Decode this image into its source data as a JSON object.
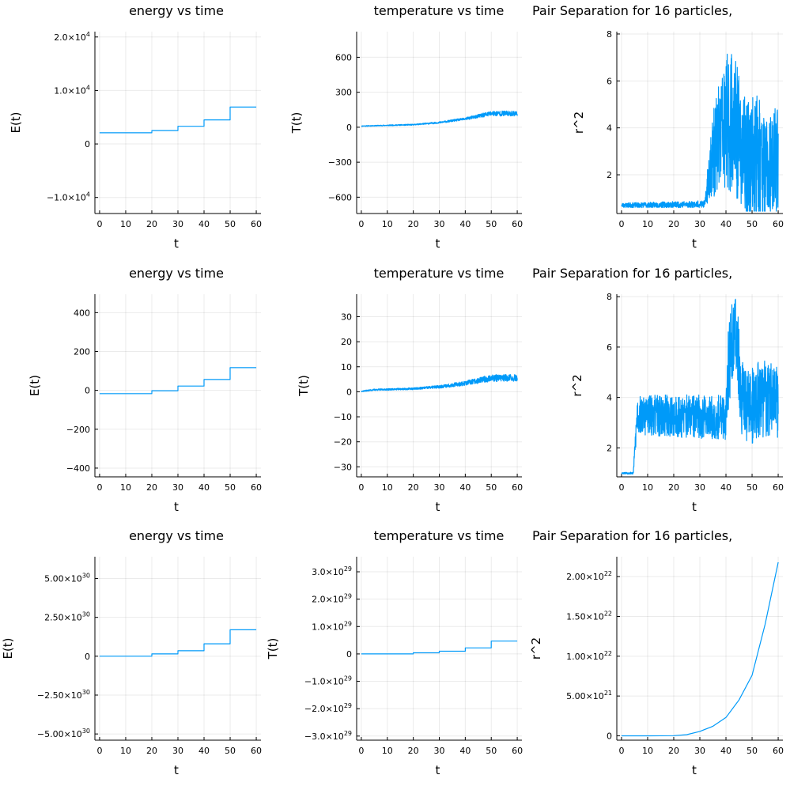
{
  "figure": {
    "background": "#ffffff",
    "line_color": "#009af9"
  },
  "chart_data": [
    {
      "id": "r1c1",
      "type": "line",
      "title": "energy vs time",
      "xlabel": "t",
      "ylabel": "E(t)",
      "xlim": [
        -1.8,
        61.8
      ],
      "ylim": [
        -13000,
        21000
      ],
      "xticks": [
        0,
        10,
        20,
        30,
        40,
        50,
        60
      ],
      "xticklabels": [
        "0",
        "10",
        "20",
        "30",
        "40",
        "50",
        "60"
      ],
      "yticks": [
        -10000,
        0,
        10000,
        20000
      ],
      "yticklabels": [
        {
          "m": "−1.0×10",
          "e": "4"
        },
        {
          "m": "0",
          "e": ""
        },
        {
          "m": "1.0×10",
          "e": "4"
        },
        {
          "m": "2.0×10",
          "e": "4"
        }
      ],
      "step": true,
      "x": [
        0,
        20,
        30,
        40,
        50,
        60
      ],
      "y": [
        2100,
        2500,
        3300,
        4500,
        6900,
        6900
      ]
    },
    {
      "id": "r1c2",
      "type": "line",
      "title": "temperature vs time",
      "xlabel": "t",
      "ylabel": "T(t)",
      "xlim": [
        -1.8,
        61.8
      ],
      "ylim": [
        -740,
        820
      ],
      "xticks": [
        0,
        10,
        20,
        30,
        40,
        50,
        60
      ],
      "xticklabels": [
        "0",
        "10",
        "20",
        "30",
        "40",
        "50",
        "60"
      ],
      "yticks": [
        -600,
        -300,
        0,
        300,
        600
      ],
      "yticklabels": [
        {
          "m": "−600",
          "e": ""
        },
        {
          "m": "−300",
          "e": ""
        },
        {
          "m": "0",
          "e": ""
        },
        {
          "m": "300",
          "e": ""
        },
        {
          "m": "600",
          "e": ""
        }
      ],
      "noisy": true,
      "seed": 11,
      "n": 900,
      "x": [
        0,
        20,
        30,
        40,
        50,
        60
      ],
      "y": [
        10,
        22,
        40,
        72,
        118,
        118
      ],
      "noise_amp": [
        3,
        5,
        7,
        10,
        22,
        22
      ]
    },
    {
      "id": "r1c3",
      "type": "line",
      "title": "Pair Separation for 16 particles,",
      "xlabel": "t",
      "ylabel": "r^2",
      "xlim": [
        -1.8,
        61.8
      ],
      "ylim": [
        0.35,
        8.1
      ],
      "xticks": [
        0,
        10,
        20,
        30,
        40,
        50,
        60
      ],
      "xticklabels": [
        "0",
        "10",
        "20",
        "30",
        "40",
        "50",
        "60"
      ],
      "yticks": [
        2,
        4,
        6,
        8
      ],
      "yticklabels": [
        {
          "m": "2",
          "e": ""
        },
        {
          "m": "4",
          "e": ""
        },
        {
          "m": "6",
          "e": ""
        },
        {
          "m": "8",
          "e": ""
        }
      ],
      "noisy": true,
      "seed": 23,
      "n": 900,
      "x": [
        0,
        32,
        34,
        38,
        42,
        46,
        48,
        52,
        56,
        60
      ],
      "y": [
        0.7,
        0.75,
        2.5,
        3.8,
        4.5,
        3.2,
        2.5,
        3.0,
        2.0,
        2.8
      ],
      "noise_amp": [
        0.1,
        0.15,
        1.5,
        2.6,
        3.2,
        2.6,
        2.5,
        2.7,
        2.3,
        2.4
      ],
      "clip": [
        0.45,
        7.85
      ]
    },
    {
      "id": "r2c1",
      "type": "line",
      "title": "energy vs time",
      "xlabel": "t",
      "ylabel": "E(t)",
      "xlim": [
        -1.8,
        61.8
      ],
      "ylim": [
        -445,
        495
      ],
      "xticks": [
        0,
        10,
        20,
        30,
        40,
        50,
        60
      ],
      "xticklabels": [
        "0",
        "10",
        "20",
        "30",
        "40",
        "50",
        "60"
      ],
      "yticks": [
        -400,
        -200,
        0,
        200,
        400
      ],
      "yticklabels": [
        {
          "m": "−400",
          "e": ""
        },
        {
          "m": "−200",
          "e": ""
        },
        {
          "m": "0",
          "e": ""
        },
        {
          "m": "200",
          "e": ""
        },
        {
          "m": "400",
          "e": ""
        }
      ],
      "step": true,
      "x": [
        0,
        20,
        30,
        40,
        50,
        60
      ],
      "y": [
        -17,
        -2,
        22,
        56,
        117,
        117
      ]
    },
    {
      "id": "r2c2",
      "type": "line",
      "title": "temperature vs time",
      "xlabel": "t",
      "ylabel": "T(t)",
      "xlim": [
        -1.8,
        61.8
      ],
      "ylim": [
        -34,
        39
      ],
      "xticks": [
        0,
        10,
        20,
        30,
        40,
        50,
        60
      ],
      "xticklabels": [
        "0",
        "10",
        "20",
        "30",
        "40",
        "50",
        "60"
      ],
      "yticks": [
        -30,
        -20,
        -10,
        0,
        10,
        20,
        30
      ],
      "yticklabels": [
        {
          "m": "−30",
          "e": ""
        },
        {
          "m": "−20",
          "e": ""
        },
        {
          "m": "−10",
          "e": ""
        },
        {
          "m": "0",
          "e": ""
        },
        {
          "m": "10",
          "e": ""
        },
        {
          "m": "20",
          "e": ""
        },
        {
          "m": "30",
          "e": ""
        }
      ],
      "noisy": true,
      "seed": 37,
      "n": 900,
      "x": [
        0,
        5,
        20,
        30,
        40,
        50,
        60
      ],
      "y": [
        0.2,
        0.8,
        1.2,
        2.0,
        3.4,
        5.5,
        5.5
      ],
      "noise_amp": [
        0.2,
        0.3,
        0.4,
        0.6,
        0.9,
        1.4,
        1.4
      ]
    },
    {
      "id": "r2c3",
      "type": "line",
      "title": "Pair Separation for 16 particles,",
      "xlabel": "t",
      "ylabel": "r^2",
      "xlim": [
        -1.8,
        61.8
      ],
      "ylim": [
        0.85,
        8.1
      ],
      "xticks": [
        0,
        10,
        20,
        30,
        40,
        50,
        60
      ],
      "xticklabels": [
        "0",
        "10",
        "20",
        "30",
        "40",
        "50",
        "60"
      ],
      "yticks": [
        2,
        4,
        6,
        8
      ],
      "yticklabels": [
        {
          "m": "2",
          "e": ""
        },
        {
          "m": "4",
          "e": ""
        },
        {
          "m": "6",
          "e": ""
        },
        {
          "m": "8",
          "e": ""
        }
      ],
      "noisy": true,
      "seed": 53,
      "n": 900,
      "x": [
        0,
        4.5,
        6,
        40,
        41,
        44,
        46,
        50,
        54,
        60
      ],
      "y": [
        1.0,
        1.0,
        3.3,
        3.2,
        5.5,
        6.5,
        4.0,
        3.6,
        4.0,
        3.8
      ],
      "noise_amp": [
        0.03,
        0.05,
        0.8,
        0.9,
        2.0,
        1.6,
        1.5,
        1.6,
        1.6,
        1.4
      ],
      "clip": [
        0.95,
        7.9
      ]
    },
    {
      "id": "r3c1",
      "type": "line",
      "title": "energy vs time",
      "xlabel": "t",
      "ylabel": "E(t)",
      "xlim": [
        -1.8,
        61.8
      ],
      "ylim": [
        -5.4e+30,
        6.4e+30
      ],
      "xticks": [
        0,
        10,
        20,
        30,
        40,
        50,
        60
      ],
      "xticklabels": [
        "0",
        "10",
        "20",
        "30",
        "40",
        "50",
        "60"
      ],
      "yticks": [
        -5e+30,
        -2.5e+30,
        0,
        2.5e+30,
        5e+30
      ],
      "yticklabels": [
        {
          "m": "−5.00×10",
          "e": "30"
        },
        {
          "m": "−2.50×10",
          "e": "30"
        },
        {
          "m": "0",
          "e": ""
        },
        {
          "m": "2.50×10",
          "e": "30"
        },
        {
          "m": "5.00×10",
          "e": "30"
        }
      ],
      "step": true,
      "x": [
        0,
        18,
        20,
        30,
        40,
        50,
        60
      ],
      "y": [
        0,
        0,
        1.5e+29,
        3.5e+29,
        8e+29,
        1.7e+30,
        1.7e+30
      ]
    },
    {
      "id": "r3c2",
      "type": "line",
      "title": "temperature vs time",
      "xlabel": "t",
      "ylabel": "T(t)",
      "xlim": [
        -1.8,
        61.8
      ],
      "ylim": [
        -3.15e+29,
        3.55e+29
      ],
      "xticks": [
        0,
        10,
        20,
        30,
        40,
        50,
        60
      ],
      "xticklabels": [
        "0",
        "10",
        "20",
        "30",
        "40",
        "50",
        "60"
      ],
      "yticks": [
        -3e+29,
        -2e+29,
        -1e+29,
        0,
        1e+29,
        2e+29,
        3e+29
      ],
      "yticklabels": [
        {
          "m": "−3.0×10",
          "e": "29"
        },
        {
          "m": "−2.0×10",
          "e": "29"
        },
        {
          "m": "−1.0×10",
          "e": "29"
        },
        {
          "m": "0",
          "e": ""
        },
        {
          "m": "1.0×10",
          "e": "29"
        },
        {
          "m": "2.0×10",
          "e": "29"
        },
        {
          "m": "3.0×10",
          "e": "29"
        }
      ],
      "step": true,
      "x": [
        0,
        18,
        20,
        30,
        40,
        50,
        60
      ],
      "y": [
        0,
        0,
        4e+27,
        1e+28,
        2.2e+28,
        4.7e+28,
        4.7e+28
      ]
    },
    {
      "id": "r3c3",
      "type": "line",
      "title": "Pair Separation for 16 particles,",
      "xlabel": "t",
      "ylabel": "r^2",
      "xlim": [
        -1.8,
        61.8
      ],
      "ylim": [
        -5.5e+20,
        2.25e+22
      ],
      "xticks": [
        0,
        10,
        20,
        30,
        40,
        50,
        60
      ],
      "xticklabels": [
        "0",
        "10",
        "20",
        "30",
        "40",
        "50",
        "60"
      ],
      "yticks": [
        0,
        5e+21,
        1e+22,
        1.5e+22,
        2e+22
      ],
      "yticklabels": [
        {
          "m": "0",
          "e": ""
        },
        {
          "m": "5.00×10",
          "e": "21"
        },
        {
          "m": "1.00×10",
          "e": "22"
        },
        {
          "m": "1.50×10",
          "e": "22"
        },
        {
          "m": "2.00×10",
          "e": "22"
        }
      ],
      "x": [
        0,
        10,
        20,
        25,
        30,
        35,
        40,
        45,
        50,
        55,
        60
      ],
      "y": [
        0,
        0,
        2e+19,
        1.5e+20,
        5.5e+20,
        1.2e+21,
        2.3e+21,
        4.5e+21,
        7.6e+21,
        1.4e+22,
        2.18e+22
      ]
    }
  ]
}
